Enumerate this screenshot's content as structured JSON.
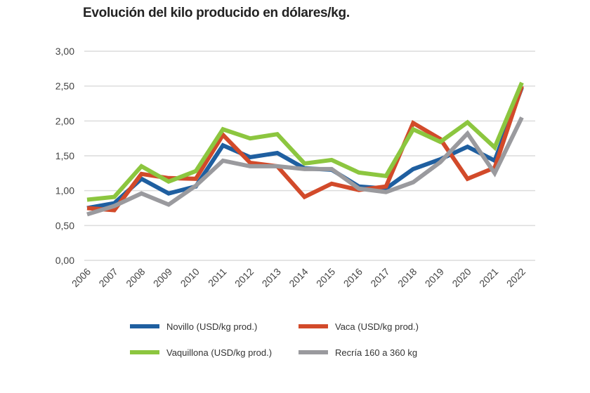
{
  "chart_data": {
    "type": "line",
    "title": "Evolución del kilo producido en dólares/kg.",
    "xlabel": "",
    "ylabel": "",
    "ylim": [
      0,
      3
    ],
    "yticks": [
      "0,00",
      "0,50",
      "1,00",
      "1,50",
      "2,00",
      "2,50",
      "3,00"
    ],
    "categories": [
      "2006",
      "2007",
      "2008",
      "2009",
      "2010",
      "2011",
      "2012",
      "2013",
      "2014",
      "2015",
      "2016",
      "2017",
      "2018",
      "2019",
      "2020",
      "2021",
      "2022"
    ],
    "grid": true,
    "legend_position": "bottom",
    "series": [
      {
        "name": "Novillo (USD/kg prod.)",
        "color": "#1f5fa0",
        "values": [
          0.75,
          0.82,
          1.17,
          0.96,
          1.06,
          1.65,
          1.48,
          1.54,
          1.32,
          1.3,
          1.06,
          1.03,
          1.31,
          1.45,
          1.63,
          1.43,
          2.48
        ]
      },
      {
        "name": "Vaca (USD/kg prod.)",
        "color": "#d24a2a",
        "values": [
          0.75,
          0.72,
          1.24,
          1.18,
          1.17,
          1.8,
          1.4,
          1.35,
          0.91,
          1.1,
          1.01,
          1.06,
          1.97,
          1.74,
          1.17,
          1.33,
          2.5
        ]
      },
      {
        "name": "Vaquillona (USD/kg prod.)",
        "color": "#8cc63f",
        "values": [
          0.87,
          0.91,
          1.35,
          1.13,
          1.28,
          1.88,
          1.75,
          1.81,
          1.39,
          1.44,
          1.26,
          1.21,
          1.88,
          1.7,
          1.98,
          1.62,
          2.55
        ]
      },
      {
        "name": "Recría 160 a 360 kg",
        "color": "#9a9a9e",
        "values": [
          0.66,
          0.78,
          0.96,
          0.8,
          1.07,
          1.43,
          1.35,
          1.35,
          1.31,
          1.31,
          1.03,
          0.98,
          1.12,
          1.41,
          1.82,
          1.25,
          2.05
        ]
      }
    ]
  }
}
